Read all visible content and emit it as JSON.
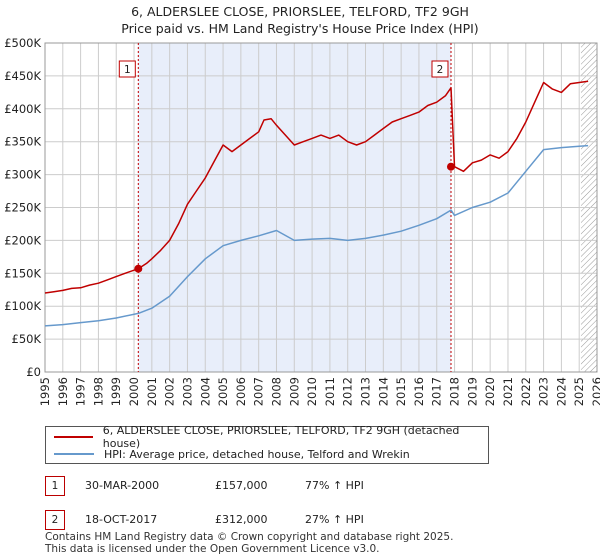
{
  "title_line1": "6, ALDERSLEE CLOSE, PRIORSLEE, TELFORD, TF2 9GH",
  "title_line2": "Price paid vs. HM Land Registry's House Price Index (HPI)",
  "colors": {
    "red": "#c00000",
    "blue": "#6699cc",
    "shade": "#e8eefa",
    "grid": "#cccccc"
  },
  "legend": {
    "red_label": "6, ALDERSLEE CLOSE, PRIORSLEE, TELFORD, TF2 9GH (detached house)",
    "blue_label": "HPI: Average price, detached house, Telford and Wrekin"
  },
  "sales": [
    {
      "num": "1",
      "date": "30-MAR-2000",
      "price": "£157,000",
      "hpi": "77% ↑ HPI"
    },
    {
      "num": "2",
      "date": "18-OCT-2017",
      "price": "£312,000",
      "hpi": "27% ↑ HPI"
    }
  ],
  "footer_line1": "Contains HM Land Registry data © Crown copyright and database right 2025.",
  "footer_line2": "This data is licensed under the Open Government Licence v3.0.",
  "chart_data": {
    "type": "line",
    "title": "6, ALDERSLEE CLOSE, PRIORSLEE, TELFORD, TF2 9GH — Price paid vs. HM Land Registry's House Price Index (HPI)",
    "xlim": [
      1995,
      2026
    ],
    "ylim": [
      0,
      500000
    ],
    "y_ticks": [
      0,
      50000,
      100000,
      150000,
      200000,
      250000,
      300000,
      350000,
      400000,
      450000,
      500000
    ],
    "y_tick_labels": [
      "£0",
      "£50K",
      "£100K",
      "£150K",
      "£200K",
      "£250K",
      "£300K",
      "£350K",
      "£400K",
      "£450K",
      "£500K"
    ],
    "x_ticks": [
      1995,
      1996,
      1997,
      1998,
      1999,
      2000,
      2001,
      2002,
      2003,
      2004,
      2005,
      2006,
      2007,
      2008,
      2009,
      2010,
      2011,
      2012,
      2013,
      2014,
      2015,
      2016,
      2017,
      2018,
      2019,
      2020,
      2021,
      2022,
      2023,
      2024,
      2025,
      2026
    ],
    "x_tick_labels": [
      "1995",
      "1996",
      "1997",
      "1998",
      "1999",
      "2000",
      "2001",
      "2002",
      "2003",
      "2004",
      "2005",
      "2006",
      "2007",
      "2008",
      "2009",
      "2010",
      "2011",
      "2012",
      "2013",
      "2014",
      "2015",
      "2016",
      "2017",
      "2018",
      "2019",
      "2020",
      "2021",
      "2022",
      "2023",
      "2024",
      "2025",
      "2026"
    ],
    "shaded_range": [
      2000.24,
      2017.8
    ],
    "hatched_from": 2025.1,
    "series": [
      {
        "name": "6, ALDERSLEE CLOSE, PRIORSLEE, TELFORD, TF2 9GH (detached house)",
        "color": "#c00000",
        "x": [
          1995,
          1995.5,
          1996,
          1996.5,
          1997,
          1997.5,
          1998,
          1998.5,
          1999,
          1999.5,
          2000.24,
          2000.7,
          2001,
          2001.5,
          2002,
          2002.5,
          2003,
          2003.5,
          2004,
          2004.5,
          2005,
          2005.5,
          2006,
          2006.5,
          2007,
          2007.3,
          2007.7,
          2008,
          2008.5,
          2009,
          2009.5,
          2010,
          2010.5,
          2011,
          2011.5,
          2012,
          2012.5,
          2013,
          2013.5,
          2014,
          2014.5,
          2015,
          2015.5,
          2016,
          2016.5,
          2017,
          2017.5,
          2017.75,
          2017.8,
          2018,
          2018.5,
          2019,
          2019.5,
          2020,
          2020.5,
          2021,
          2021.5,
          2022,
          2022.5,
          2023,
          2023.5,
          2024,
          2024.5,
          2025,
          2025.5
        ],
        "y": [
          120000,
          122000,
          124000,
          127000,
          128000,
          132000,
          135000,
          140000,
          145000,
          150000,
          157000,
          165000,
          172000,
          185000,
          200000,
          225000,
          255000,
          275000,
          295000,
          320000,
          345000,
          335000,
          345000,
          355000,
          365000,
          383000,
          385000,
          375000,
          360000,
          345000,
          350000,
          355000,
          360000,
          355000,
          360000,
          350000,
          345000,
          350000,
          360000,
          370000,
          380000,
          385000,
          390000,
          395000,
          405000,
          410000,
          420000,
          430000,
          432000,
          312000,
          305000,
          318000,
          322000,
          330000,
          325000,
          335000,
          355000,
          380000,
          410000,
          440000,
          430000,
          425000,
          438000,
          440000,
          442000
        ]
      },
      {
        "name": "HPI: Average price, detached house, Telford and Wrekin",
        "color": "#6699cc",
        "x": [
          1995,
          1996,
          1997,
          1998,
          1999,
          2000.24,
          2001,
          2002,
          2003,
          2004,
          2005,
          2006,
          2007,
          2008,
          2009,
          2010,
          2011,
          2012,
          2013,
          2014,
          2015,
          2016,
          2017,
          2017.8,
          2018,
          2019,
          2020,
          2021,
          2022,
          2023,
          2024,
          2025,
          2025.5
        ],
        "y": [
          70000,
          72000,
          75000,
          78000,
          82000,
          89000,
          97000,
          115000,
          145000,
          172000,
          192000,
          200000,
          207000,
          215000,
          200000,
          202000,
          203000,
          200000,
          203000,
          208000,
          214000,
          223000,
          233000,
          246000,
          238000,
          250000,
          258000,
          272000,
          305000,
          338000,
          341000,
          343000,
          344000
        ]
      }
    ],
    "markers": [
      {
        "label": "1",
        "x": 2000.24,
        "y": 157000
      },
      {
        "label": "2",
        "x": 2017.8,
        "y": 312000
      }
    ]
  }
}
